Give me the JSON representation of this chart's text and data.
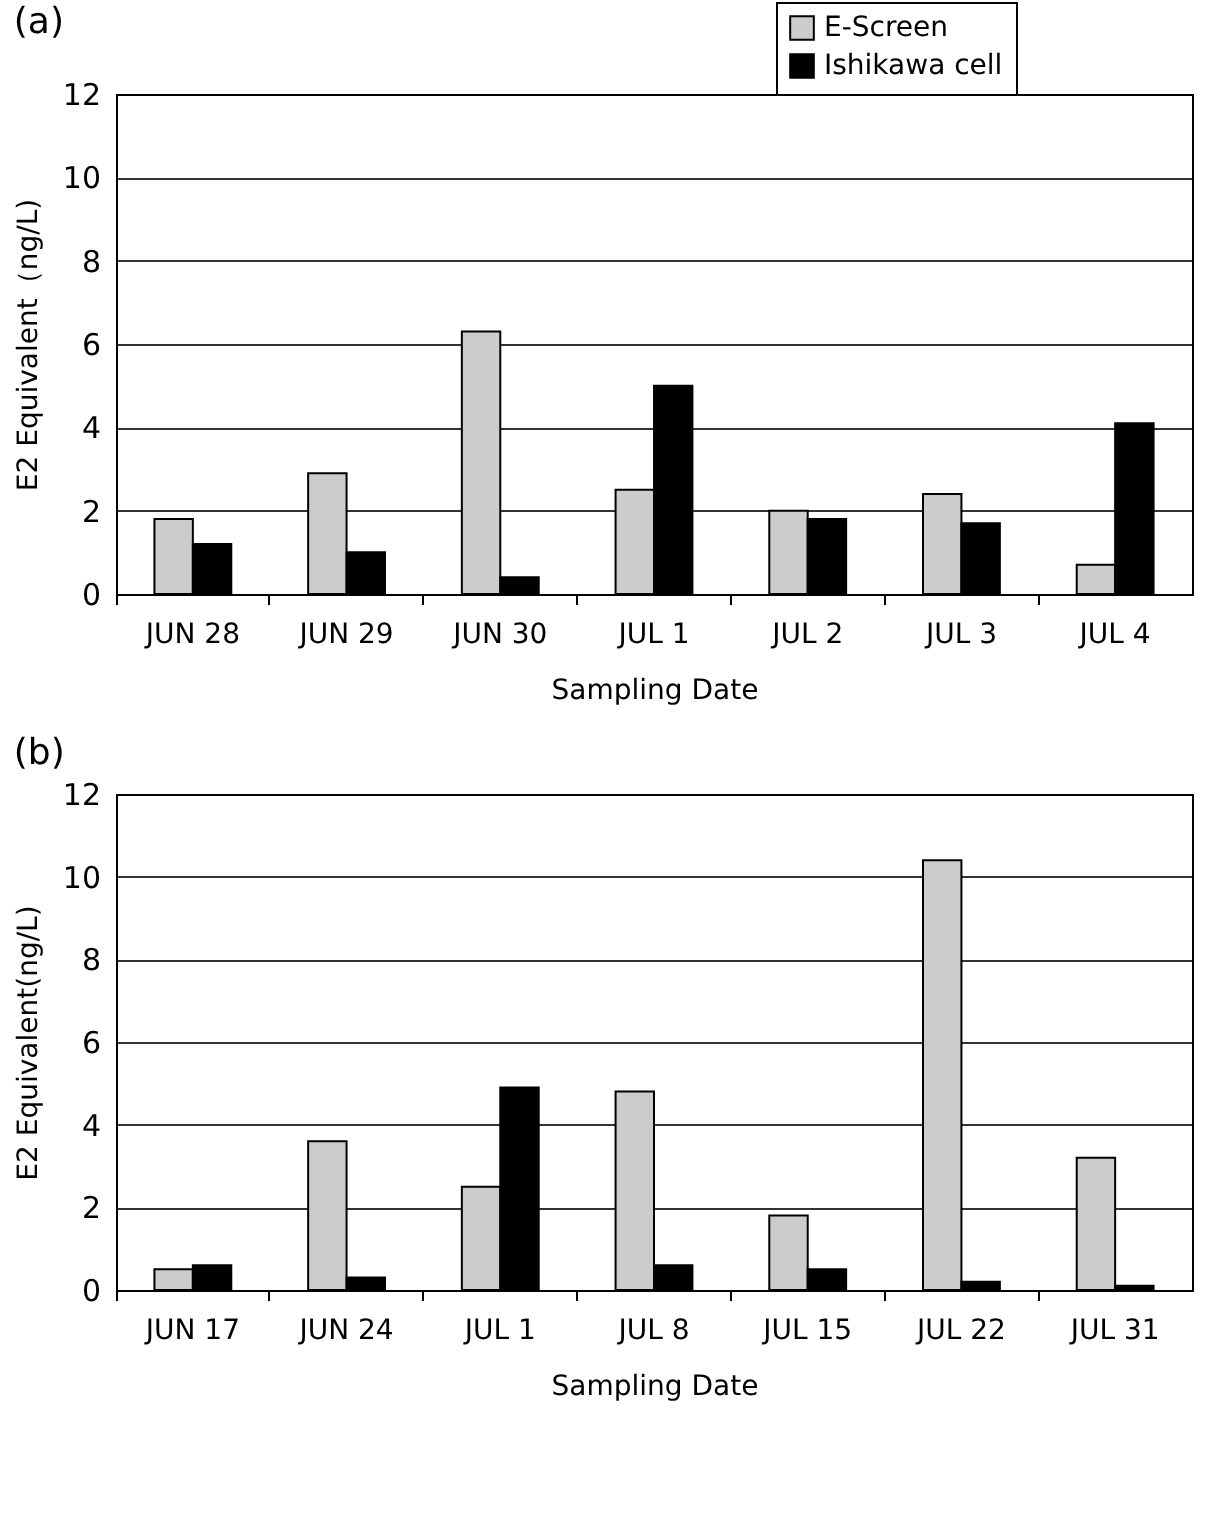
{
  "chart_data": [
    {
      "type": "bar",
      "title": "(a)",
      "xlabel": "Sampling Date",
      "ylabel": "E2 Equivalent（ng/L)",
      "categories": [
        "JUN 28",
        "JUN 29",
        "JUN 30",
        "JUL 1",
        "JUL 2",
        "JUL 3",
        "JUL 4"
      ],
      "series": [
        {
          "name": "E-Screen",
          "color": "#cccccc",
          "values": [
            1.8,
            2.9,
            6.3,
            2.5,
            2.0,
            2.4,
            0.7
          ]
        },
        {
          "name": "Ishikawa cell",
          "color": "#000000",
          "values": [
            1.2,
            1.0,
            0.4,
            5.0,
            1.8,
            1.7,
            4.1
          ]
        }
      ],
      "ylim": [
        0,
        12
      ],
      "yticks": [
        0,
        2,
        4,
        6,
        8,
        10,
        12
      ],
      "grid": "y",
      "legend": "top right"
    },
    {
      "type": "bar",
      "title": "(b)",
      "xlabel": "Sampling Date",
      "ylabel": "E2 Equivalent(ng/L)",
      "categories": [
        "JUN 17",
        "JUN 24",
        "JUL 1",
        "JUL 8",
        "JUL 15",
        "JUL 22",
        "JUL 31"
      ],
      "series": [
        {
          "color": "#cccccc",
          "values": [
            0.5,
            3.6,
            2.5,
            4.8,
            1.8,
            10.4,
            3.2
          ]
        },
        {
          "color": "#000000",
          "values": [
            0.6,
            0.3,
            4.9,
            0.6,
            0.5,
            0.2,
            0.1
          ]
        }
      ],
      "ylim": [
        0,
        12
      ],
      "yticks": [
        0,
        2,
        4,
        6,
        8,
        10,
        12
      ],
      "grid": "y"
    }
  ]
}
